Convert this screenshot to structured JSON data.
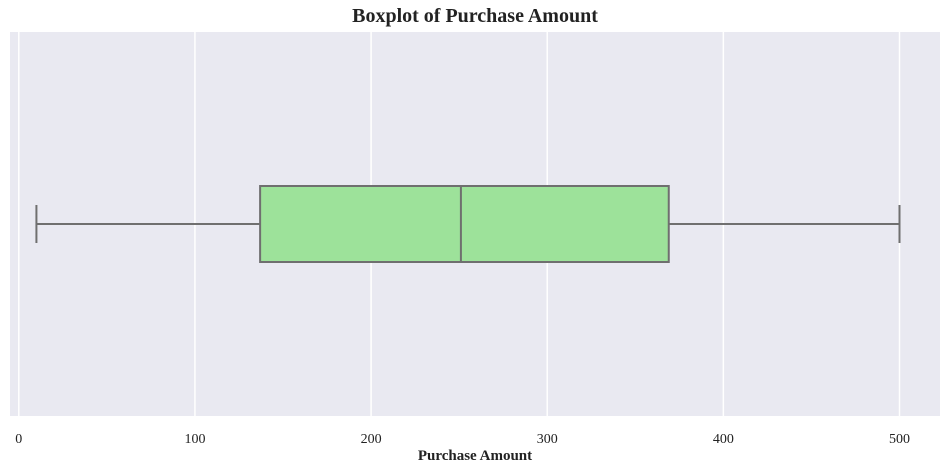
{
  "chart_data": {
    "type": "boxplot",
    "title": "Boxplot of Purchase Amount",
    "xlabel": "Purchase Amount",
    "ylabel": "",
    "xlim": [
      -5,
      523
    ],
    "xticks": [
      0,
      100,
      200,
      300,
      400,
      500
    ],
    "grid": true,
    "orientation": "horizontal",
    "box": {
      "whisker_low": 10,
      "q1": 137,
      "median": 251,
      "q3": 369,
      "whisker_high": 500
    },
    "colors": {
      "box_fill": "#9de29a",
      "box_edge": "#6f6f6f",
      "plot_background": "#e9e9f1",
      "grid": "#ffffff"
    }
  }
}
